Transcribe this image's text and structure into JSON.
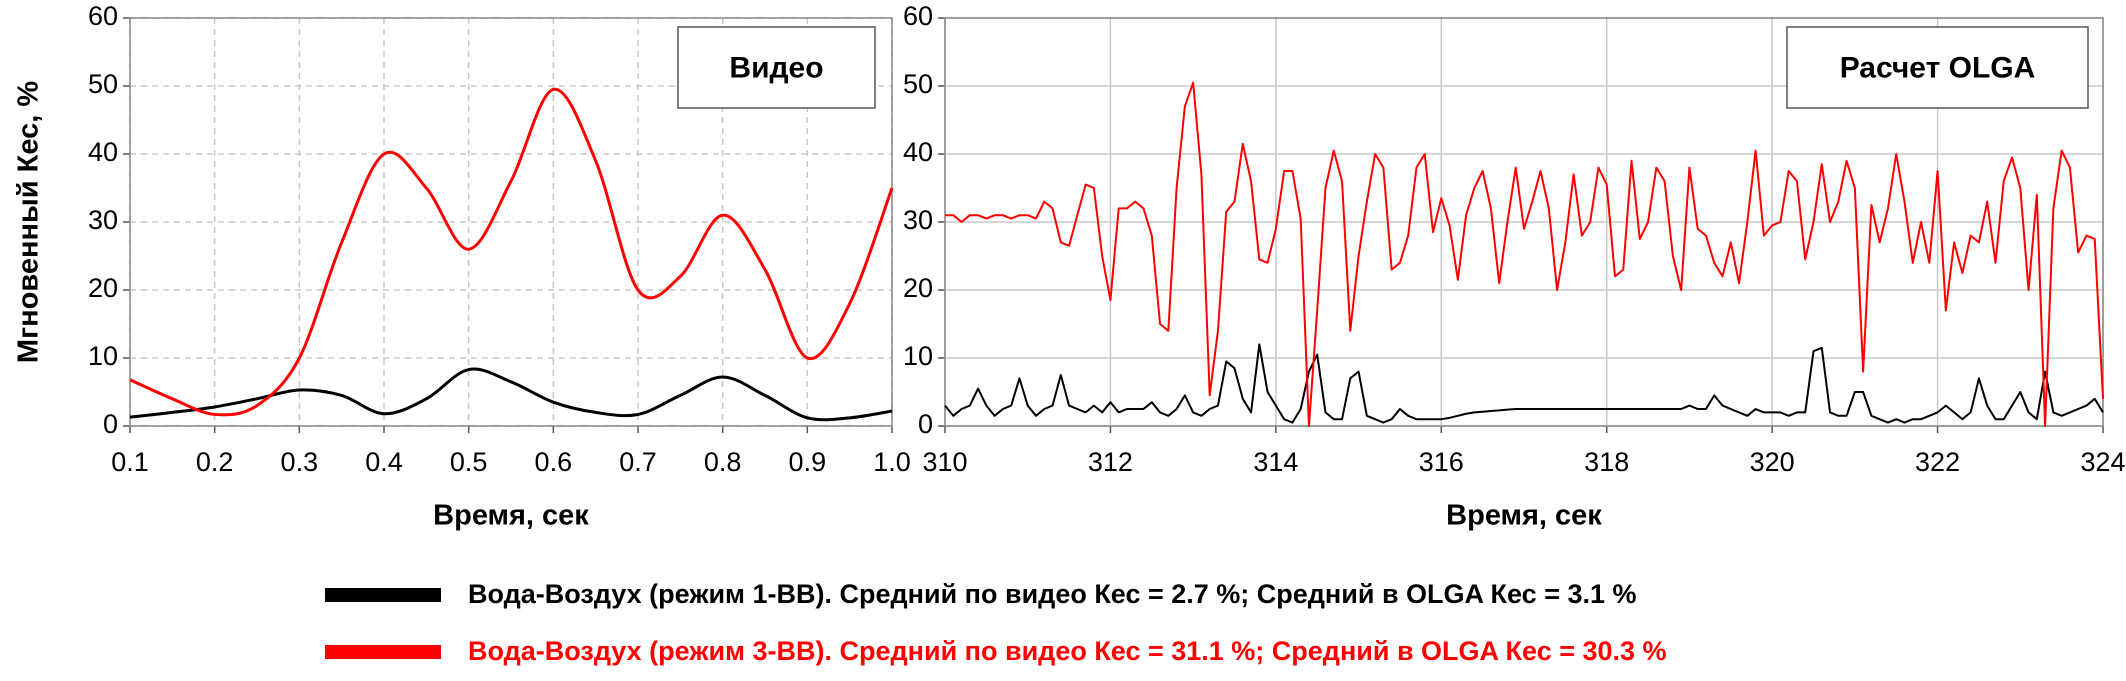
{
  "chart_data": [
    {
      "type": "line",
      "smooth": true,
      "grid": "dashed",
      "annotation": "Видео",
      "xlabel": "Время, сек",
      "ylabel": "Мгновенный Кес, %",
      "x": [
        0.1,
        0.15,
        0.2,
        0.25,
        0.3,
        0.35,
        0.4,
        0.45,
        0.5,
        0.55,
        0.6,
        0.65,
        0.7,
        0.75,
        0.8,
        0.85,
        0.9,
        0.95,
        1.0
      ],
      "series": [
        {
          "name": "Вода-Воздух (режим 1-ВВ). Средний по видео Кес = 2.7 %; Средний в OLGA Кес = 3.1 %",
          "color": "#000000",
          "values": [
            1.3,
            2,
            2.8,
            4,
            5.3,
            4.5,
            1.8,
            4,
            8.3,
            6.5,
            3.5,
            2,
            1.7,
            4.5,
            7.2,
            4.5,
            1.2,
            1.2,
            2.2
          ]
        },
        {
          "name": "Вода-Воздух (режим 3-ВВ). Средний по видео Кес = 31.1 %; Средний в OLGA Кес = 30.3 %",
          "color": "#ff0000",
          "values": [
            6.8,
            4,
            1.7,
            3,
            10,
            27,
            40,
            35,
            26,
            36,
            49.5,
            39,
            20,
            22,
            31,
            23,
            10,
            18,
            35
          ]
        }
      ],
      "xlim": [
        0.1,
        1.0
      ],
      "xticks": [
        0.1,
        0.2,
        0.3,
        0.4,
        0.5,
        0.6,
        0.7,
        0.8,
        0.9,
        {
          "value": 1.0,
          "label": "1.0"
        }
      ],
      "ylim": [
        0,
        60
      ],
      "yticks": [
        0,
        10,
        20,
        30,
        40,
        50,
        60
      ]
    },
    {
      "type": "line",
      "smooth": false,
      "grid": "solid",
      "annotation": "Расчет OLGA",
      "xlabel": "Время, сек",
      "x": [
        310,
        310.1,
        310.2,
        310.3,
        310.4,
        310.5,
        310.6,
        310.7,
        310.8,
        310.9,
        311,
        311.1,
        311.2,
        311.3,
        311.4,
        311.5,
        311.6,
        311.7,
        311.8,
        311.9,
        312,
        312.1,
        312.2,
        312.3,
        312.4,
        312.5,
        312.6,
        312.7,
        312.8,
        312.9,
        313,
        313.1,
        313.2,
        313.3,
        313.4,
        313.5,
        313.6,
        313.7,
        313.8,
        313.9,
        314,
        314.1,
        314.2,
        314.3,
        314.4,
        314.5,
        314.6,
        314.7,
        314.8,
        314.9,
        315,
        315.1,
        315.2,
        315.3,
        315.4,
        315.5,
        315.6,
        315.7,
        315.8,
        315.9,
        316,
        316.1,
        316.2,
        316.3,
        316.4,
        316.5,
        316.6,
        316.7,
        316.8,
        316.9,
        317,
        317.1,
        317.2,
        317.3,
        317.4,
        317.5,
        317.6,
        317.7,
        317.8,
        317.9,
        318,
        318.1,
        318.2,
        318.3,
        318.4,
        318.5,
        318.6,
        318.7,
        318.8,
        318.9,
        319,
        319.1,
        319.2,
        319.3,
        319.4,
        319.5,
        319.6,
        319.7,
        319.8,
        319.9,
        320,
        320.1,
        320.2,
        320.3,
        320.4,
        320.5,
        320.6,
        320.7,
        320.8,
        320.9,
        321,
        321.1,
        321.2,
        321.3,
        321.4,
        321.5,
        321.6,
        321.7,
        321.8,
        321.9,
        322,
        322.1,
        322.2,
        322.3,
        322.4,
        322.5,
        322.6,
        322.7,
        322.8,
        322.9,
        323,
        323.1,
        323.2,
        323.3,
        323.4,
        323.5,
        323.6,
        323.7,
        323.8,
        323.9,
        324
      ],
      "series": [
        {
          "color": "#000000",
          "values": [
            3,
            1.5,
            2.5,
            3,
            5.5,
            3,
            1.5,
            2.5,
            3,
            7,
            3,
            1.5,
            2.5,
            3,
            7.5,
            3,
            2.5,
            2,
            3,
            2,
            3.5,
            2,
            2.5,
            2.5,
            2.5,
            3.5,
            2,
            1.5,
            2.5,
            4.5,
            2,
            1.5,
            2.5,
            3,
            9.5,
            8.5,
            4,
            2,
            12,
            5,
            3,
            1,
            0.5,
            2.5,
            8,
            10.5,
            2,
            1,
            1,
            7,
            8,
            1.5,
            1,
            0.5,
            1,
            2.5,
            1.5,
            1,
            1,
            1,
            1,
            1.2,
            1.5,
            1.8,
            2,
            2.1,
            2.2,
            2.3,
            2.4,
            2.5,
            2.5,
            2.5,
            2.5,
            2.5,
            2.5,
            2.5,
            2.5,
            2.5,
            2.5,
            2.5,
            2.5,
            2.5,
            2.5,
            2.5,
            2.5,
            2.5,
            2.5,
            2.5,
            2.5,
            2.5,
            3,
            2.5,
            2.5,
            4.5,
            3,
            2.5,
            2,
            1.5,
            2.5,
            2,
            2,
            2,
            1.5,
            2,
            2,
            11,
            11.5,
            2,
            1.5,
            1.5,
            5,
            5,
            1.5,
            1,
            0.5,
            1,
            0.5,
            1,
            1,
            1.5,
            2,
            3,
            2,
            1,
            2,
            7,
            3,
            1,
            1,
            3,
            5,
            2,
            1,
            8,
            2,
            1.5,
            2,
            2.5,
            3,
            4,
            2
          ]
        },
        {
          "color": "#ff0000",
          "values": [
            31,
            31,
            30,
            31,
            31,
            30.5,
            31,
            31,
            30.5,
            31,
            31,
            30.5,
            33,
            32,
            27,
            26.5,
            31,
            35.5,
            35,
            25,
            18.5,
            32,
            32,
            33,
            32,
            28,
            15,
            14,
            35,
            47,
            50.5,
            37,
            4.5,
            14,
            31.5,
            33,
            41.5,
            36,
            24.5,
            24,
            29,
            37.5,
            37.5,
            30.5,
            0,
            17,
            35,
            40.5,
            36,
            14,
            25,
            33,
            40,
            38,
            23,
            24,
            28,
            38,
            40,
            28.5,
            33.5,
            29.5,
            21.5,
            31,
            35,
            37.5,
            32,
            21,
            30,
            38,
            29,
            33,
            37.5,
            32,
            20,
            27,
            37,
            28,
            30,
            38,
            35.5,
            22,
            23,
            39,
            27.5,
            30,
            38,
            36,
            25,
            20,
            38,
            29,
            28,
            24,
            22,
            27,
            21,
            30,
            40.5,
            28,
            29.5,
            30,
            37.5,
            36,
            24.5,
            30,
            38.5,
            30,
            33,
            39,
            35,
            8,
            32.5,
            27,
            32,
            40,
            33,
            24,
            30,
            24,
            37.5,
            17,
            27,
            22.5,
            28,
            27,
            33,
            24,
            36,
            39.5,
            35,
            20,
            34,
            0,
            32,
            40.5,
            38,
            25.5,
            28,
            27.5,
            4
          ]
        }
      ],
      "xlim": [
        310,
        324
      ],
      "xticks": [
        310,
        312,
        314,
        316,
        318,
        320,
        322,
        324
      ],
      "ylim": [
        0,
        60
      ],
      "yticks": [
        0,
        10,
        20,
        30,
        40,
        50,
        60
      ]
    }
  ]
}
